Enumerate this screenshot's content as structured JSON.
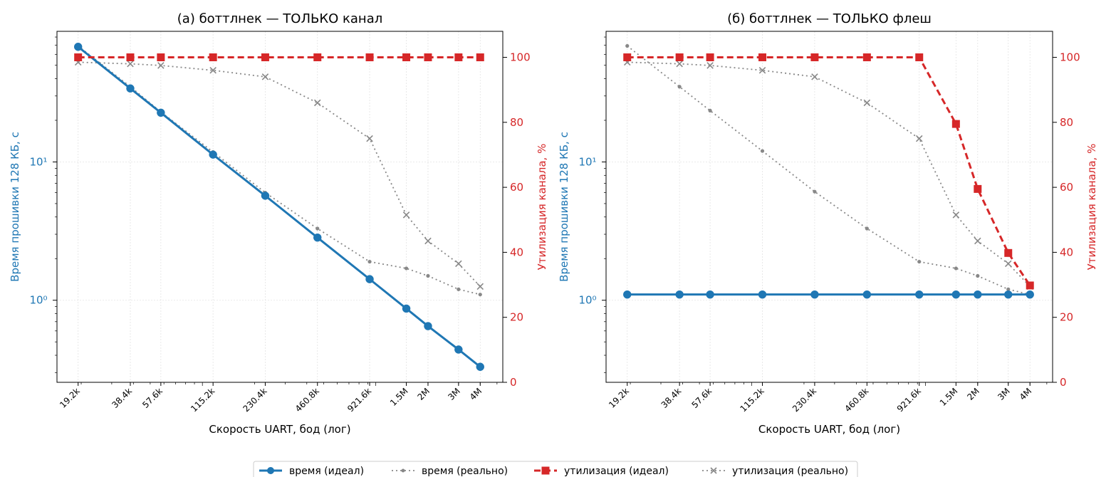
{
  "chart_data": [
    {
      "type": "line",
      "title": "(а) боттлнек — ТОЛЬКО канал",
      "xlabel": "Скорость UART, бод (лог)",
      "ylabel_left": "Время прошивки 128 КБ, с",
      "ylabel_right": "Утилизация канала, %",
      "x_scale": "log",
      "y_left_scale": "log",
      "y_left_ticks": [
        "10⁰",
        "10¹"
      ],
      "y_right_range": [
        0,
        108
      ],
      "y_right_ticks": [
        0,
        20,
        40,
        60,
        80,
        100
      ],
      "x_ticks": [
        "19.2k",
        "38.4k",
        "57.6k",
        "115.2k",
        "230.4k",
        "460.8k",
        "921.6k",
        "1.5M",
        "2M",
        "3M",
        "4M"
      ],
      "x": [
        19200,
        38400,
        57600,
        115200,
        230400,
        460800,
        921600,
        1500000,
        2000000,
        3000000,
        4000000
      ],
      "series": [
        {
          "name": "время (идеал)",
          "axis": "left",
          "color": "#1f77b4",
          "style": "solid",
          "marker": "circle",
          "values": [
            68,
            34,
            22.7,
            11.3,
            5.7,
            2.84,
            1.42,
            0.87,
            0.65,
            0.44,
            0.33
          ]
        },
        {
          "name": "время (реально)",
          "axis": "left",
          "color": "#888888",
          "style": "dotted",
          "marker": "dot",
          "values": [
            69,
            35,
            23,
            11.8,
            6.0,
            3.3,
            1.9,
            1.7,
            1.5,
            1.2,
            1.1
          ]
        },
        {
          "name": "утилизация (идеал)",
          "axis": "right",
          "color": "#d62728",
          "style": "dashed",
          "marker": "square",
          "values": [
            100,
            100,
            100,
            100,
            100,
            100,
            100,
            100,
            100,
            100,
            100
          ]
        },
        {
          "name": "утилизация (реально)",
          "axis": "right",
          "color": "#888888",
          "style": "dotted",
          "marker": "x",
          "values": [
            98.5,
            98,
            97.5,
            96,
            94,
            86,
            75,
            51.5,
            43.5,
            36.5,
            29.5
          ]
        }
      ]
    },
    {
      "type": "line",
      "title": "(б) боттлнек — ТОЛЬКО флеш",
      "xlabel": "Скорость UART, бод (лог)",
      "ylabel_left": "Время прошивки 128 КБ, с",
      "ylabel_right": "Утилизация канала, %",
      "x_scale": "log",
      "y_left_scale": "log",
      "y_left_ticks": [
        "10⁰",
        "10¹"
      ],
      "y_right_range": [
        0,
        108
      ],
      "y_right_ticks": [
        0,
        20,
        40,
        60,
        80,
        100
      ],
      "x_ticks": [
        "19.2k",
        "38.4k",
        "57.6k",
        "115.2k",
        "230.4k",
        "460.8k",
        "921.6k",
        "1.5M",
        "2M",
        "3M",
        "4M"
      ],
      "x": [
        19200,
        38400,
        57600,
        115200,
        230400,
        460800,
        921600,
        1500000,
        2000000,
        3000000,
        4000000
      ],
      "series": [
        {
          "name": "время (идеал)",
          "axis": "left",
          "color": "#1f77b4",
          "style": "solid",
          "marker": "circle",
          "values": [
            1.1,
            1.1,
            1.1,
            1.1,
            1.1,
            1.1,
            1.1,
            1.1,
            1.1,
            1.1,
            1.1
          ]
        },
        {
          "name": "время (реально)",
          "axis": "left",
          "color": "#888888",
          "style": "dotted",
          "marker": "dot",
          "values": [
            69,
            35,
            23.5,
            12,
            6.1,
            3.3,
            1.9,
            1.7,
            1.5,
            1.2,
            1.1
          ]
        },
        {
          "name": "утилизация (идеал)",
          "axis": "right",
          "color": "#d62728",
          "style": "dashed",
          "marker": "square",
          "values": [
            100,
            100,
            100,
            100,
            100,
            100,
            100,
            79.5,
            59.5,
            39.8,
            29.8
          ]
        },
        {
          "name": "утилизация (реально)",
          "axis": "right",
          "color": "#888888",
          "style": "dotted",
          "marker": "x",
          "values": [
            98.5,
            98,
            97.5,
            96,
            94,
            86,
            75,
            51.5,
            43.5,
            36.5,
            29.5
          ]
        }
      ]
    }
  ],
  "legend": {
    "placement": "bottom-center",
    "entries": [
      "время (идеал)",
      "время (реально)",
      "утилизация (идеал)",
      "утилизация (реально)"
    ]
  }
}
